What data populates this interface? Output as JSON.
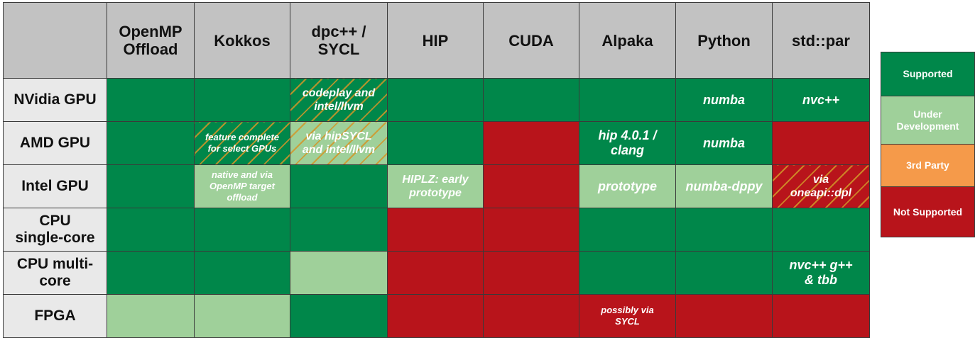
{
  "chart_data": {
    "type": "table",
    "colors": {
      "supported": "#00874a",
      "under_development": "#9fd09a",
      "third_party": "#f59a4a",
      "not_supported": "#b8141b"
    },
    "columns": [
      "OpenMP Offload",
      "Kokkos",
      "dpc++ / SYCL",
      "HIP",
      "CUDA",
      "Alpaka",
      "Python",
      "std::par"
    ],
    "rows": [
      {
        "label": "NVidia GPU",
        "cells": [
          {
            "status": "supported",
            "note": ""
          },
          {
            "status": "supported",
            "note": ""
          },
          {
            "status": "supported",
            "note": "codeplay and intel/llvm",
            "hatched": true
          },
          {
            "status": "supported",
            "note": ""
          },
          {
            "status": "supported",
            "note": ""
          },
          {
            "status": "supported",
            "note": ""
          },
          {
            "status": "supported",
            "note": "numba"
          },
          {
            "status": "supported",
            "note": "nvc++"
          }
        ]
      },
      {
        "label": "AMD GPU",
        "cells": [
          {
            "status": "supported",
            "note": ""
          },
          {
            "status": "supported",
            "note": "feature complete for select GPUs",
            "hatched": true
          },
          {
            "status": "under_development",
            "note": "via hipSYCL and intel/llvm",
            "hatched": true
          },
          {
            "status": "supported",
            "note": ""
          },
          {
            "status": "not_supported",
            "note": ""
          },
          {
            "status": "supported",
            "note": "hip 4.0.1 / clang"
          },
          {
            "status": "supported",
            "note": "numba"
          },
          {
            "status": "not_supported",
            "note": ""
          }
        ]
      },
      {
        "label": "Intel GPU",
        "cells": [
          {
            "status": "supported",
            "note": ""
          },
          {
            "status": "under_development",
            "note": "native and via OpenMP target offload"
          },
          {
            "status": "supported",
            "note": ""
          },
          {
            "status": "under_development",
            "note": "HIPLZ: early prototype"
          },
          {
            "status": "not_supported",
            "note": ""
          },
          {
            "status": "under_development",
            "note": "prototype"
          },
          {
            "status": "under_development",
            "note": "numba-dppy"
          },
          {
            "status": "not_supported",
            "note": "via oneapi::dpl",
            "hatched": true
          }
        ]
      },
      {
        "label": "CPU single-core",
        "cells": [
          {
            "status": "supported",
            "note": ""
          },
          {
            "status": "supported",
            "note": ""
          },
          {
            "status": "supported",
            "note": ""
          },
          {
            "status": "not_supported",
            "note": ""
          },
          {
            "status": "not_supported",
            "note": ""
          },
          {
            "status": "supported",
            "note": ""
          },
          {
            "status": "supported",
            "note": ""
          },
          {
            "status": "supported",
            "note": ""
          }
        ]
      },
      {
        "label": "CPU multi-core",
        "cells": [
          {
            "status": "supported",
            "note": ""
          },
          {
            "status": "supported",
            "note": ""
          },
          {
            "status": "under_development",
            "note": ""
          },
          {
            "status": "not_supported",
            "note": ""
          },
          {
            "status": "not_supported",
            "note": ""
          },
          {
            "status": "supported",
            "note": ""
          },
          {
            "status": "supported",
            "note": ""
          },
          {
            "status": "supported",
            "note": "nvc++ g++ & tbb"
          }
        ]
      },
      {
        "label": "FPGA",
        "cells": [
          {
            "status": "under_development",
            "note": ""
          },
          {
            "status": "under_development",
            "note": ""
          },
          {
            "status": "supported",
            "note": ""
          },
          {
            "status": "not_supported",
            "note": ""
          },
          {
            "status": "not_supported",
            "note": ""
          },
          {
            "status": "not_supported",
            "note": "possibly via SYCL"
          },
          {
            "status": "not_supported",
            "note": ""
          },
          {
            "status": "not_supported",
            "note": ""
          }
        ]
      }
    ],
    "legend": [
      {
        "label": "Supported",
        "status": "supported"
      },
      {
        "label": "Under Development",
        "status": "under_development"
      },
      {
        "label": "3rd Party",
        "status": "third_party"
      },
      {
        "label": "Not Supported",
        "status": "not_supported"
      }
    ]
  }
}
